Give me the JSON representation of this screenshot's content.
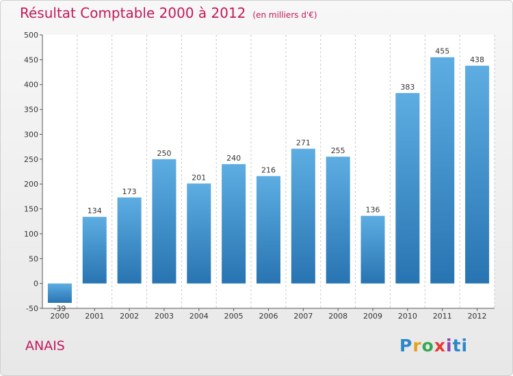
{
  "chart_data": {
    "type": "bar",
    "title": "Résultat Comptable 2000 à 2012",
    "subtitle": "(en milliers d'€)",
    "categories": [
      "2000",
      "2001",
      "2002",
      "2003",
      "2004",
      "2005",
      "2006",
      "2007",
      "2008",
      "2009",
      "2010",
      "2011",
      "2012"
    ],
    "values": [
      -39,
      134,
      173,
      250,
      201,
      240,
      216,
      271,
      255,
      136,
      383,
      455,
      438
    ],
    "ylim": [
      -50,
      500
    ],
    "yticks": [
      -50,
      0,
      50,
      100,
      150,
      200,
      250,
      300,
      350,
      400,
      450,
      500
    ],
    "xlabel": "",
    "ylabel": "",
    "grid": "vertical"
  },
  "commune": "ANAIS",
  "logo": {
    "parts": [
      "P",
      "r",
      "o",
      "x",
      "i",
      "ti"
    ]
  },
  "colors": {
    "bar_top": "#5dade2",
    "bar_bottom": "#2874b2",
    "title": "#c2185b"
  }
}
